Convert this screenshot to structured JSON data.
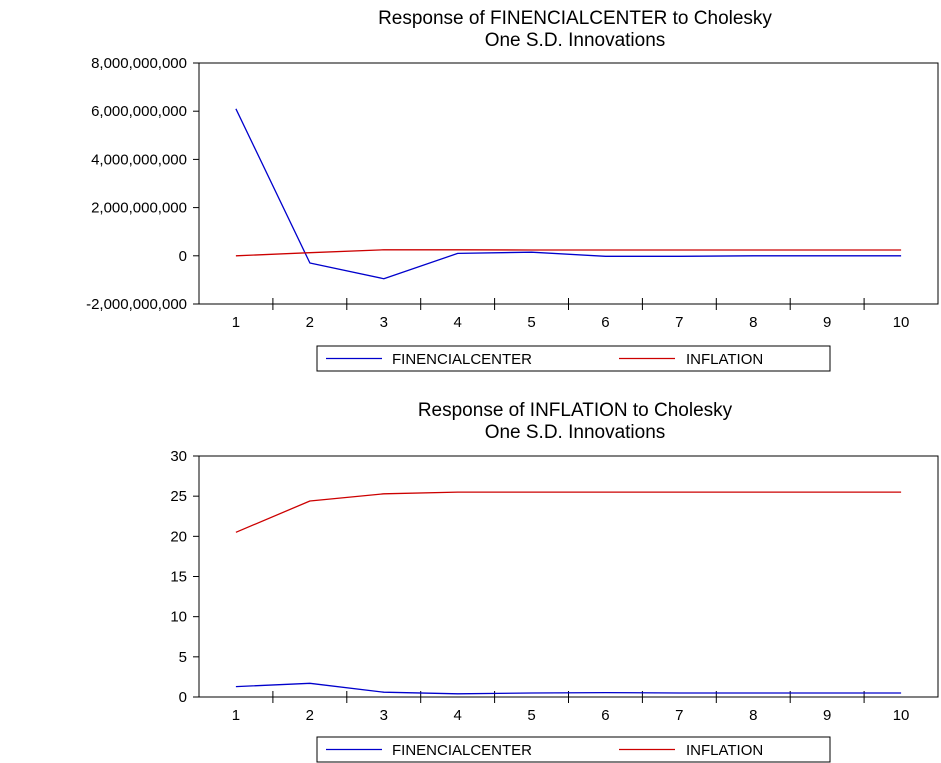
{
  "chart_data": [
    {
      "type": "line",
      "title": "Response of FINENCIALCENTER to Cholesky",
      "subtitle": "One S.D. Innovations",
      "xlabel": "",
      "ylabel": "",
      "x": [
        1,
        2,
        3,
        4,
        5,
        6,
        7,
        8,
        9,
        10
      ],
      "x_tick_labels": [
        "1",
        "2",
        "3",
        "4",
        "5",
        "6",
        "7",
        "8",
        "9",
        "10"
      ],
      "ylim": [
        -2000000000,
        8000000000
      ],
      "y_ticks": [
        -2000000000,
        0,
        2000000000,
        4000000000,
        6000000000,
        8000000000
      ],
      "y_tick_labels": [
        "-2,000,000,000",
        "0",
        "2,000,000,000",
        "4,000,000,000",
        "6,000,000,000",
        "8,000,000,000"
      ],
      "grid": false,
      "legend_position": "bottom",
      "series": [
        {
          "name": "FINENCIALCENTER",
          "color": "#0000cc",
          "values": [
            6100000000,
            -300000000,
            -950000000,
            100000000,
            150000000,
            -20000000,
            -20000000,
            0,
            0,
            0
          ]
        },
        {
          "name": "INFLATION",
          "color": "#cc0000",
          "values": [
            0,
            130000000,
            250000000,
            250000000,
            240000000,
            240000000,
            240000000,
            240000000,
            240000000,
            240000000
          ]
        }
      ]
    },
    {
      "type": "line",
      "title": "Response of INFLATION to Cholesky",
      "subtitle": "One S.D. Innovations",
      "xlabel": "",
      "ylabel": "",
      "x": [
        1,
        2,
        3,
        4,
        5,
        6,
        7,
        8,
        9,
        10
      ],
      "x_tick_labels": [
        "1",
        "2",
        "3",
        "4",
        "5",
        "6",
        "7",
        "8",
        "9",
        "10"
      ],
      "ylim": [
        0,
        30
      ],
      "y_ticks": [
        0,
        5,
        10,
        15,
        20,
        25,
        30
      ],
      "y_tick_labels": [
        "0",
        "5",
        "10",
        "15",
        "20",
        "25",
        "30"
      ],
      "grid": false,
      "legend_position": "bottom",
      "series": [
        {
          "name": "FINENCIALCENTER",
          "color": "#0000cc",
          "values": [
            1.3,
            1.7,
            0.6,
            0.4,
            0.5,
            0.55,
            0.5,
            0.5,
            0.5,
            0.5
          ]
        },
        {
          "name": "INFLATION",
          "color": "#cc0000",
          "values": [
            20.5,
            24.4,
            25.3,
            25.5,
            25.5,
            25.5,
            25.5,
            25.5,
            25.5,
            25.5
          ]
        }
      ]
    }
  ]
}
